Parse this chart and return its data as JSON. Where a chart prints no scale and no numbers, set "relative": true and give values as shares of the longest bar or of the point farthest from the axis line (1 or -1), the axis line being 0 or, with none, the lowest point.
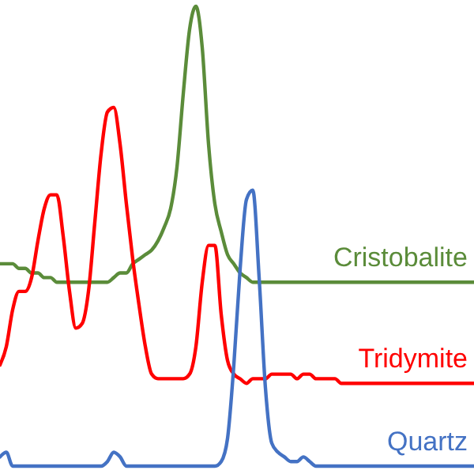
{
  "chart_data": {
    "type": "line",
    "relative": true,
    "categories": [
      null,
      null,
      null,
      null,
      null,
      null,
      null,
      null,
      null,
      null,
      null,
      null,
      null,
      null,
      null,
      null,
      null,
      null,
      null,
      null,
      null,
      null,
      null,
      null,
      null,
      null,
      null,
      null,
      null,
      null,
      null,
      null,
      null,
      null,
      null,
      null,
      null,
      null,
      null,
      null,
      null,
      null,
      null,
      null,
      null,
      null,
      null,
      null,
      null,
      null,
      null,
      null,
      null,
      null,
      null,
      null,
      null,
      null,
      null,
      null,
      null,
      null,
      null,
      null,
      null,
      null,
      null,
      null,
      null,
      null,
      null,
      null,
      null,
      null,
      null,
      null
    ],
    "series": [
      {
        "name": "Cristobalite",
        "color": "#5b8c3a",
        "values": [
          0.44,
          0.44,
          0.44,
          0.43,
          0.43,
          0.42,
          0.42,
          0.41,
          0.41,
          0.4,
          0.4,
          0.4,
          0.4,
          0.4,
          0.4,
          0.4,
          0.4,
          0.4,
          0.41,
          0.42,
          0.42,
          0.44,
          0.45,
          0.46,
          0.47,
          0.49,
          0.52,
          0.56,
          0.65,
          0.81,
          0.95,
          1.0,
          0.91,
          0.7,
          0.57,
          0.51,
          0.46,
          0.44,
          0.42,
          0.41,
          0.4,
          0.4,
          0.4,
          0.4,
          0.4,
          0.4,
          0.4,
          0.4,
          0.4,
          0.4,
          0.4,
          0.4,
          0.4,
          0.4,
          0.4,
          0.4,
          0.4,
          0.4,
          0.4,
          0.4,
          0.4,
          0.4,
          0.4,
          0.4,
          0.4,
          0.4,
          0.4,
          0.4,
          0.4,
          0.4,
          0.4,
          0.4,
          0.4,
          0.4,
          0.4,
          0.4
        ]
      },
      {
        "name": "Tridymite",
        "color": "#ff0000",
        "values": [
          0.22,
          0.26,
          0.34,
          0.38,
          0.38,
          0.41,
          0.49,
          0.56,
          0.59,
          0.59,
          0.5,
          0.38,
          0.3,
          0.31,
          0.38,
          0.53,
          0.68,
          0.77,
          0.78,
          0.7,
          0.57,
          0.45,
          0.35,
          0.26,
          0.2,
          0.19,
          0.19,
          0.19,
          0.19,
          0.19,
          0.2,
          0.26,
          0.4,
          0.48,
          0.48,
          0.33,
          0.23,
          0.2,
          0.19,
          0.18,
          0.19,
          0.19,
          0.19,
          0.2,
          0.2,
          0.2,
          0.2,
          0.19,
          0.2,
          0.2,
          0.19,
          0.19,
          0.19,
          0.19,
          0.18,
          0.18,
          0.18,
          0.18,
          0.18,
          0.18,
          0.18,
          0.18,
          0.18,
          0.18,
          0.18,
          0.18,
          0.18,
          0.18,
          0.18,
          0.18,
          0.18,
          0.18,
          0.18,
          0.18,
          0.18,
          0.18
        ]
      },
      {
        "name": "Quartz",
        "color": "#4472c4",
        "values": [
          0.02,
          0.03,
          0.0,
          0,
          0,
          0,
          0,
          0,
          0,
          0,
          0,
          0,
          0,
          0,
          0,
          0,
          0,
          0.01,
          0.03,
          0.02,
          0.0,
          0,
          0,
          0,
          0,
          0,
          0,
          0,
          0,
          0,
          0,
          0,
          0,
          0,
          0,
          0.01,
          0.06,
          0.22,
          0.43,
          0.58,
          0.6,
          0.41,
          0.17,
          0.05,
          0.03,
          0.02,
          0.01,
          0.01,
          0.02,
          0.01,
          0,
          0,
          0,
          0,
          0,
          0,
          0,
          0,
          0,
          0,
          0,
          0,
          0,
          0,
          0,
          0,
          0,
          0,
          0,
          0,
          0,
          0,
          0,
          0,
          0,
          0
        ]
      }
    ]
  }
}
